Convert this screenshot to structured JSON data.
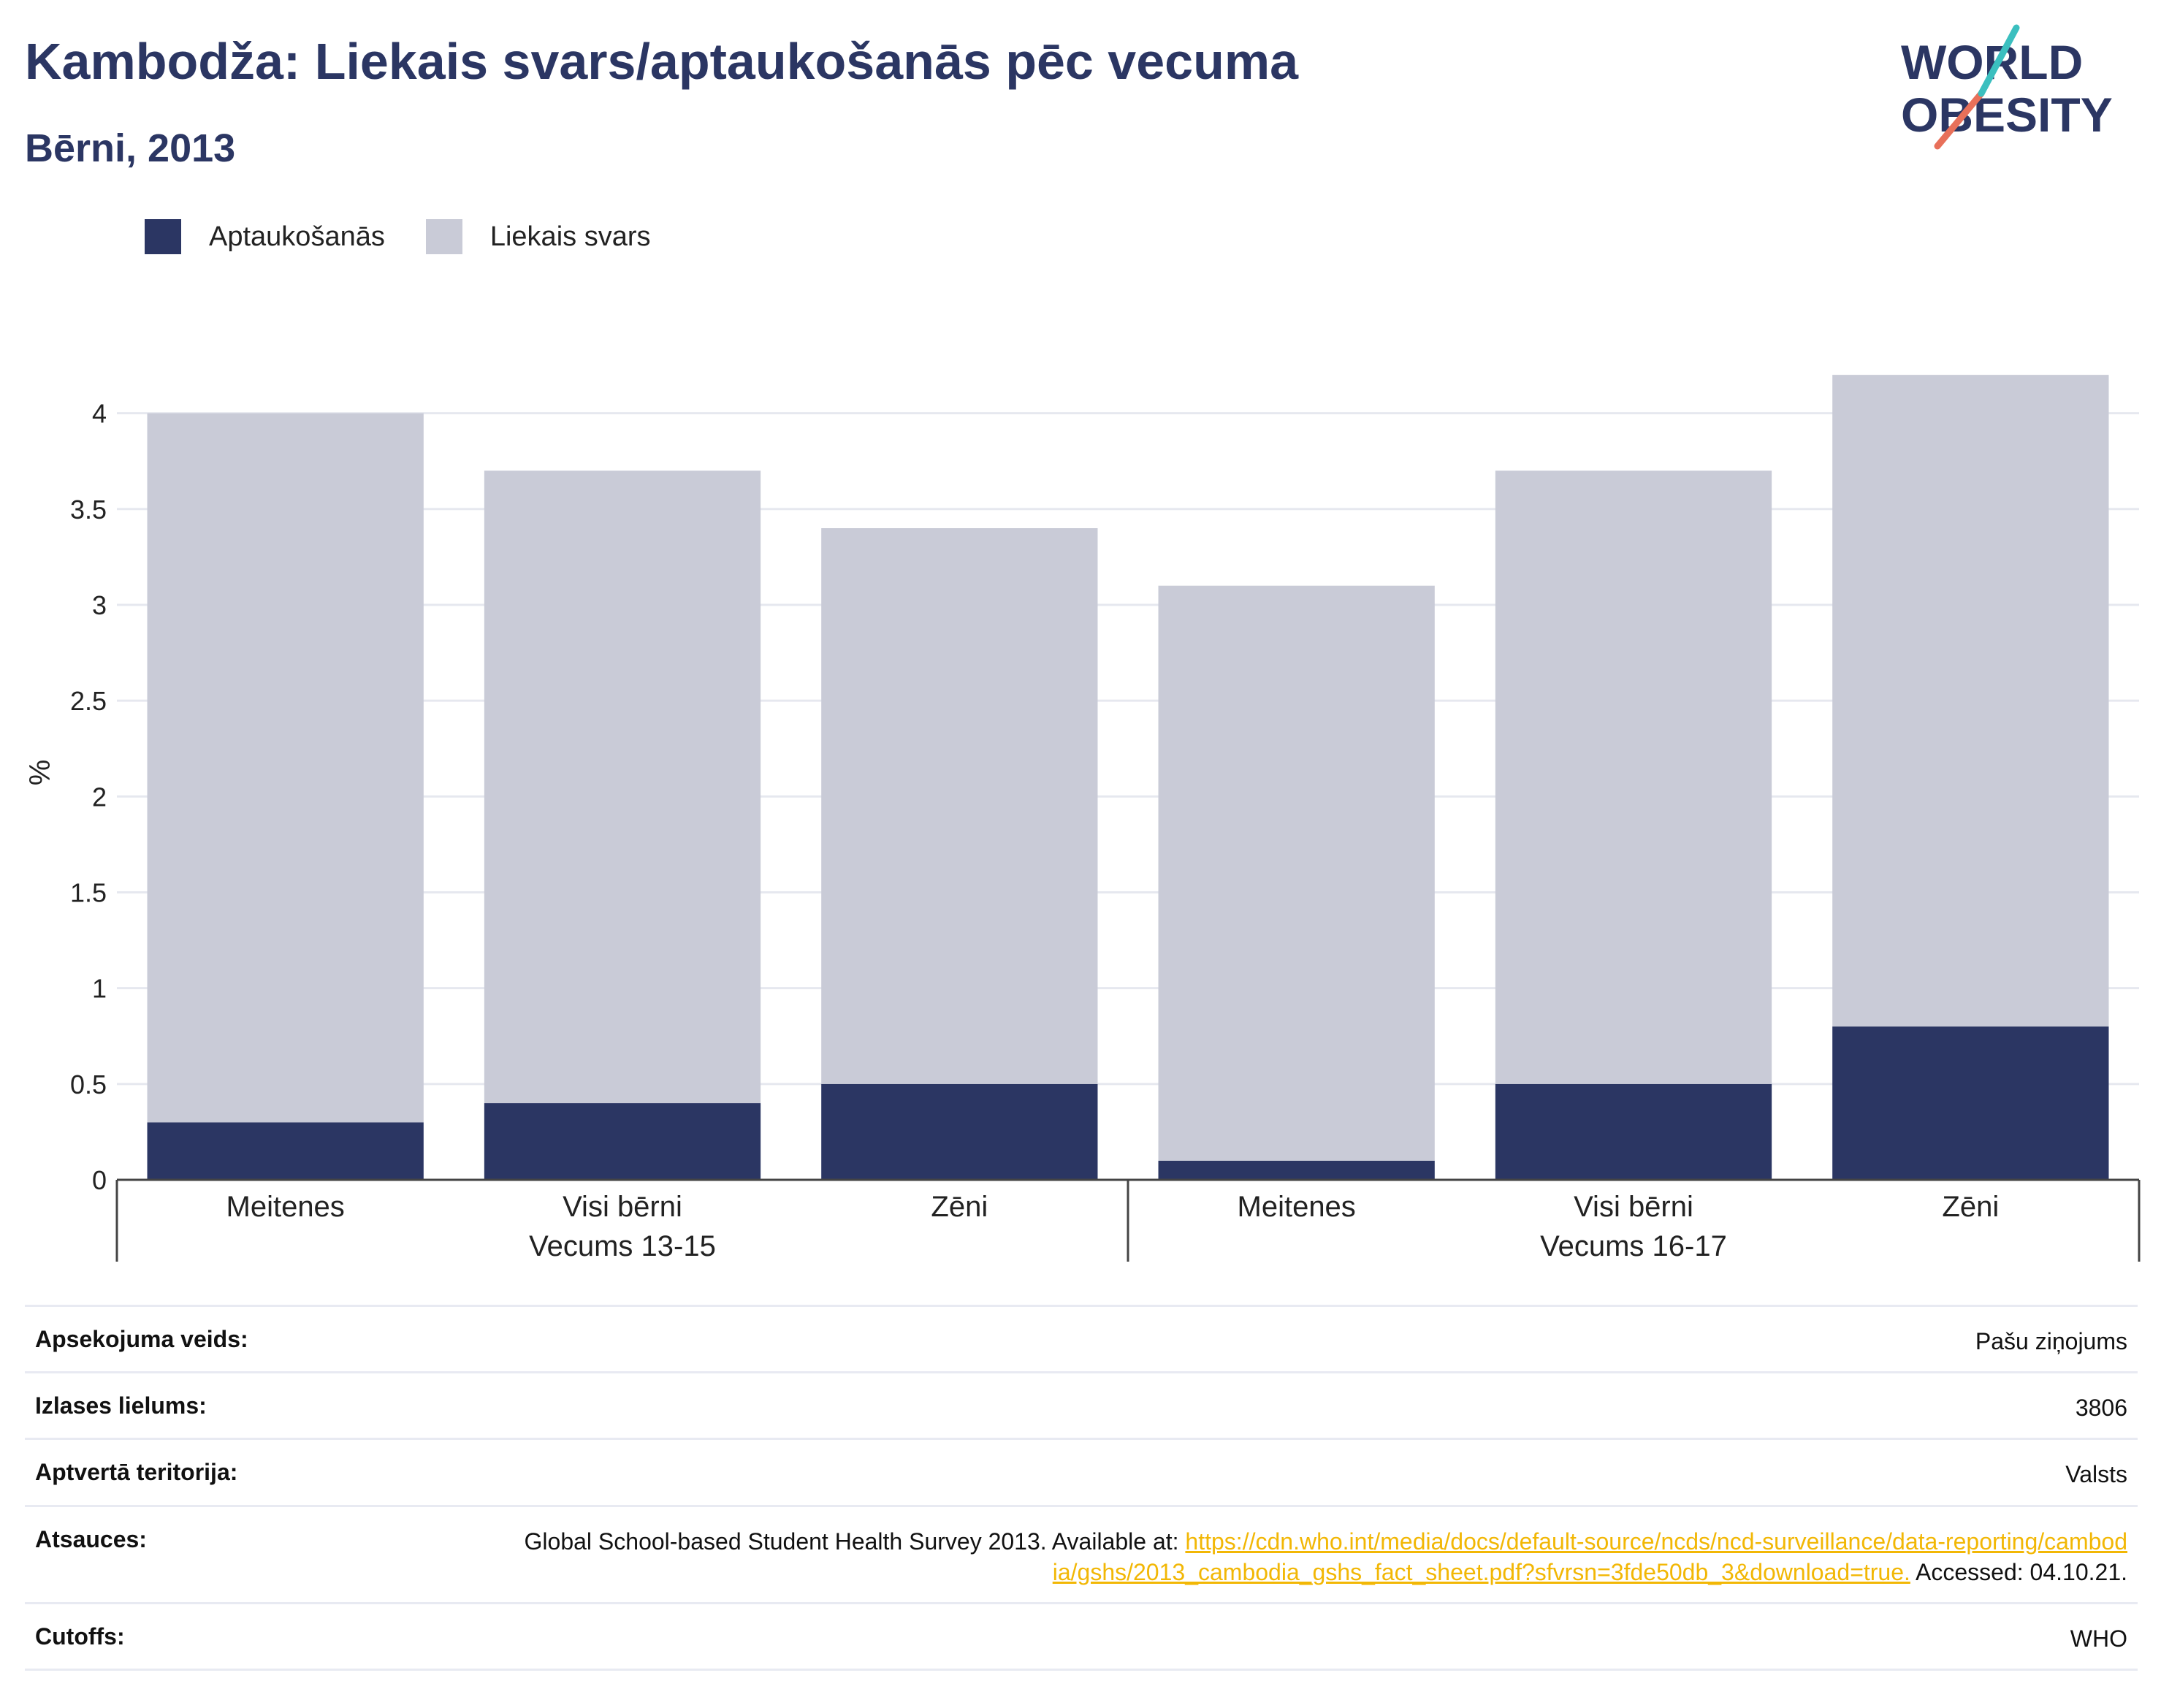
{
  "header": {
    "title": "Kambodža: Liekais svars/aptaukošanās pēc vecuma",
    "subtitle": "Bērni, 2013"
  },
  "logo": {
    "line1": "WORLD",
    "line2": "OBESITY",
    "accent_teal": "#3bbfbf",
    "accent_coral": "#e8705a",
    "color": "#2b3663"
  },
  "legend": [
    {
      "label": "Aptaukošanās",
      "color": "#2b3663"
    },
    {
      "label": "Liekais svars",
      "color": "#c9cbd7"
    }
  ],
  "chart_data": {
    "type": "bar",
    "stacked": true,
    "ylabel": "%",
    "ylim": [
      0,
      4.25
    ],
    "yticks": [
      "0",
      "0.5",
      "1",
      "1.5",
      "2",
      "2.5",
      "3",
      "3.5",
      "4"
    ],
    "groups": [
      {
        "label": "Vecums 13-15",
        "categories": [
          "Meitenes",
          "Visi bērni",
          "Zēni"
        ]
      },
      {
        "label": "Vecums 16-17",
        "categories": [
          "Meitenes",
          "Visi bērni",
          "Zēni"
        ]
      }
    ],
    "series": [
      {
        "name": "Aptaukošanās",
        "color": "#2b3663",
        "values": [
          0.3,
          0.4,
          0.5,
          0.1,
          0.5,
          0.8
        ]
      },
      {
        "name": "Liekais svars",
        "color": "#c9cbd7",
        "values": [
          3.7,
          3.3,
          2.9,
          3.0,
          3.2,
          3.4
        ]
      }
    ],
    "grid": true
  },
  "info": [
    {
      "label": "Apsekojuma veids:",
      "value": "Pašu ziņojums"
    },
    {
      "label": "Izlases lielums:",
      "value": "3806"
    },
    {
      "label": "Aptvertā teritorija:",
      "value": "Valsts"
    },
    {
      "label": "Atsauces:",
      "value_prefix": "Global School-based Student Health Survey 2013. Available at: ",
      "link": "https://cdn.who.int/media/docs/default-source/ncds/ncd-surveillance/data-reporting/cambodia/gshs/2013_cambodia_gshs_fact_sheet.pdf?sfvrsn=3fde50db_3&download=true.",
      "value_suffix": " Accessed: 04.10.21."
    },
    {
      "label": "Cutoffs:",
      "value": "WHO"
    }
  ]
}
